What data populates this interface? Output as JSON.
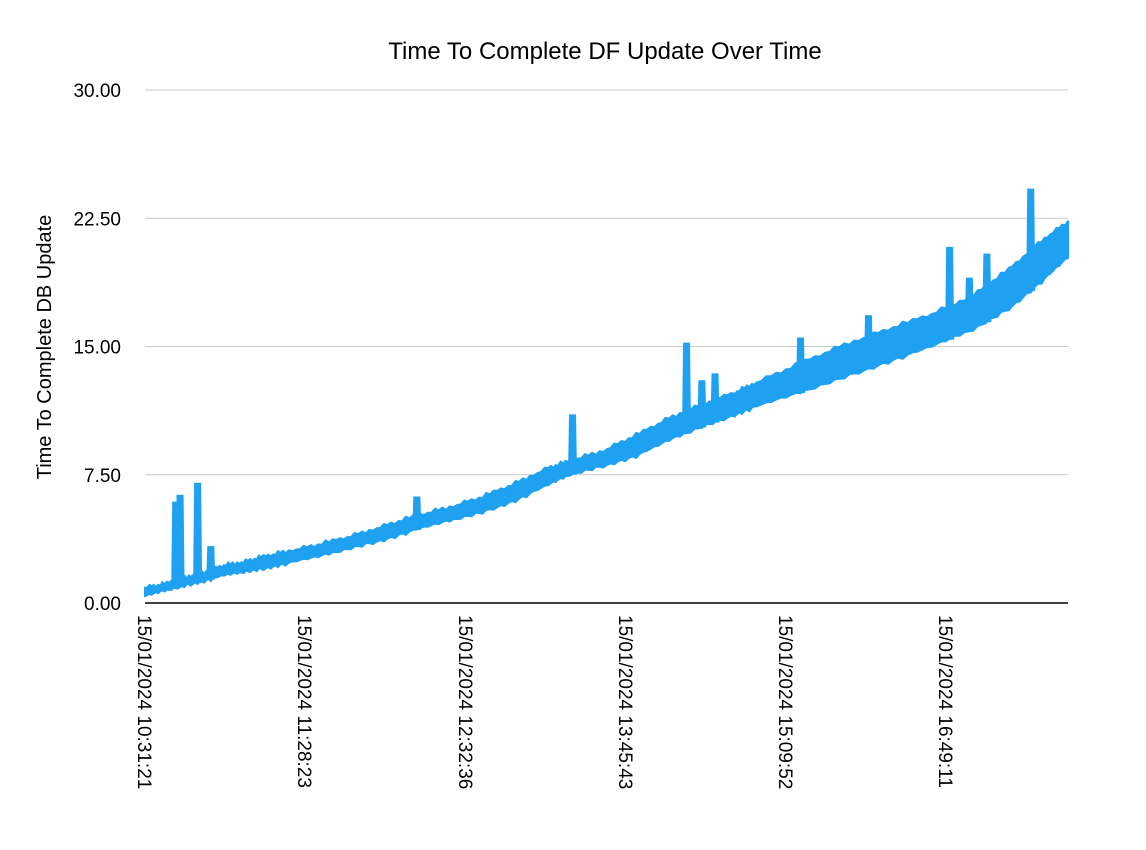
{
  "chart_data": {
    "type": "area",
    "title": "Time To Complete DF Update Over Time",
    "xlabel": "",
    "ylabel": "Time To Complete DB Update",
    "ylim": [
      0,
      30
    ],
    "y_ticks": [
      "0.00",
      "7.50",
      "15.00",
      "22.50",
      "30.00"
    ],
    "y_tick_values": [
      0,
      7.5,
      15,
      22.5,
      30
    ],
    "x_tick_labels": [
      "15/01/2024 10:31:21",
      "15/01/2024 11:28:23",
      "15/01/2024 12:32:36",
      "15/01/2024 13:45:43",
      "15/01/2024 15:09:52",
      "15/01/2024 16:49:11"
    ],
    "grid": true,
    "legend": "none",
    "series_color": "#1ea1f1",
    "band_lower": {
      "x": [
        "10:31",
        "10:40",
        "10:49",
        "10:58",
        "11:07",
        "11:16",
        "11:25",
        "11:35",
        "11:50",
        "12:05",
        "12:20",
        "12:35",
        "12:50",
        "13:05",
        "13:20",
        "13:35",
        "13:45",
        "14:00",
        "14:15",
        "14:30",
        "14:45",
        "15:00",
        "15:10",
        "15:30",
        "15:50",
        "16:10",
        "16:30",
        "16:49",
        "17:05",
        "17:20",
        "17:32"
      ],
      "y": [
        0.4,
        0.7,
        1.0,
        1.3,
        1.6,
        1.8,
        2.0,
        2.3,
        2.7,
        3.2,
        3.7,
        4.3,
        4.8,
        5.3,
        6.0,
        6.9,
        7.5,
        8.0,
        8.6,
        9.5,
        10.3,
        11.0,
        11.5,
        12.3,
        13.2,
        14.1,
        15.0,
        16.0,
        17.2,
        18.8,
        20.2
      ]
    },
    "band_upper": {
      "x": [
        "10:31",
        "10:40",
        "10:49",
        "10:58",
        "11:07",
        "11:16",
        "11:25",
        "11:35",
        "11:50",
        "12:05",
        "12:20",
        "12:35",
        "12:50",
        "13:05",
        "13:20",
        "13:35",
        "13:45",
        "14:00",
        "14:15",
        "14:30",
        "14:45",
        "15:00",
        "15:10",
        "15:30",
        "15:50",
        "16:10",
        "16:30",
        "16:49",
        "17:05",
        "17:20",
        "17:32"
      ],
      "y": [
        0.9,
        1.1,
        1.5,
        1.8,
        2.2,
        2.4,
        2.7,
        3.0,
        3.4,
        3.9,
        4.5,
        5.1,
        5.6,
        6.2,
        7.0,
        7.9,
        8.3,
        8.9,
        9.8,
        10.8,
        11.6,
        12.3,
        12.9,
        14.0,
        15.1,
        16.0,
        16.9,
        18.0,
        19.5,
        21.2,
        22.3
      ]
    },
    "spikes": [
      {
        "x": "10:45",
        "y": 5.9
      },
      {
        "x": "10:47",
        "y": 6.3
      },
      {
        "x": "10:55",
        "y": 7.0
      },
      {
        "x": "11:01",
        "y": 3.3
      },
      {
        "x": "12:35",
        "y": 6.2
      },
      {
        "x": "13:46",
        "y": 11.0
      },
      {
        "x": "14:38",
        "y": 15.2
      },
      {
        "x": "14:45",
        "y": 13.0
      },
      {
        "x": "14:51",
        "y": 13.4
      },
      {
        "x": "15:30",
        "y": 15.5
      },
      {
        "x": "16:01",
        "y": 16.8
      },
      {
        "x": "16:38",
        "y": 20.8
      },
      {
        "x": "16:47",
        "y": 19.0
      },
      {
        "x": "16:55",
        "y": 20.4
      },
      {
        "x": "17:15",
        "y": 24.2
      }
    ]
  }
}
